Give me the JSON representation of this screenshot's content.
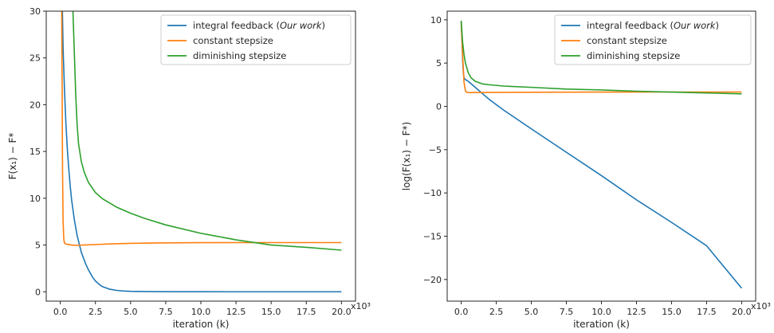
{
  "chart_data": [
    {
      "type": "line",
      "xlabel": "iteration (k)",
      "ylabel": "F(x₁) − F*",
      "x_multiplier": "x10³",
      "xlim": [
        -1.0,
        21.0
      ],
      "ylim": [
        -1.0,
        30.0
      ],
      "xticks": [
        0.0,
        2.5,
        5.0,
        7.5,
        10.0,
        12.5,
        15.0,
        17.5,
        20.0
      ],
      "xtick_labels": [
        "0.0",
        "2.5",
        "5.0",
        "7.5",
        "10.0",
        "12.5",
        "15.0",
        "17.5",
        "20.0"
      ],
      "yticks": [
        0,
        5,
        10,
        15,
        20,
        25,
        30
      ],
      "ytick_labels": [
        "0",
        "5",
        "10",
        "15",
        "20",
        "25",
        "30"
      ],
      "legend_position": "top-right",
      "grid": false,
      "series": [
        {
          "name": "integral feedback (Our work)",
          "legend_plain": "integral feedback (",
          "legend_italic": "Our work",
          "legend_close": ")",
          "color": "#1f77b4",
          "x": [
            0.15,
            0.2,
            0.3,
            0.4,
            0.5,
            0.6,
            0.7,
            0.8,
            1.0,
            1.2,
            1.5,
            1.8,
            2.0,
            2.3,
            2.5,
            2.8,
            3.0,
            3.5,
            4.0,
            4.5,
            5.0,
            6.0,
            7.0,
            8.0,
            10.0,
            12.0,
            15.0,
            17.5,
            20.0
          ],
          "y": [
            30.0,
            26.0,
            21.5,
            18.0,
            15.3,
            13.2,
            11.4,
            9.9,
            7.7,
            6.0,
            4.2,
            3.0,
            2.35,
            1.55,
            1.15,
            0.75,
            0.55,
            0.28,
            0.15,
            0.08,
            0.05,
            0.03,
            0.02,
            0.01,
            0.01,
            0.0,
            0.0,
            0.0,
            0.0
          ]
        },
        {
          "name": "constant stepsize",
          "color": "#ff7f0e",
          "x": [
            0.1,
            0.13,
            0.16,
            0.2,
            0.25,
            0.3,
            0.4,
            0.6,
            0.8,
            1.0,
            1.3,
            1.6,
            2.0,
            3.0,
            4.0,
            5.0,
            7.0,
            10.0,
            15.0,
            20.0
          ],
          "y": [
            30.0,
            22.0,
            13.0,
            7.5,
            5.6,
            5.2,
            5.1,
            5.05,
            5.0,
            4.98,
            4.97,
            5.0,
            5.02,
            5.08,
            5.14,
            5.18,
            5.22,
            5.25,
            5.26,
            5.26
          ]
        },
        {
          "name": "diminishing stepsize",
          "color": "#2ca02c",
          "x": [
            0.9,
            1.0,
            1.1,
            1.2,
            1.3,
            1.5,
            1.7,
            2.0,
            2.5,
            3.0,
            4.0,
            5.0,
            6.0,
            7.5,
            10.0,
            12.5,
            15.0,
            17.5,
            20.0
          ],
          "y": [
            30.0,
            25.5,
            21.0,
            17.8,
            15.8,
            13.9,
            12.8,
            11.7,
            10.6,
            9.95,
            9.05,
            8.4,
            7.85,
            7.15,
            6.25,
            5.55,
            5.0,
            4.75,
            4.45
          ]
        }
      ]
    },
    {
      "type": "line",
      "xlabel": "iteration (k)",
      "ylabel": "log(F(x₁) − F*)",
      "x_multiplier": "x10³",
      "xlim": [
        -1.0,
        21.0
      ],
      "ylim": [
        -22.5,
        11.0
      ],
      "xticks": [
        0.0,
        2.5,
        5.0,
        7.5,
        10.0,
        12.5,
        15.0,
        17.5,
        20.0
      ],
      "xtick_labels": [
        "0.0",
        "2.5",
        "5.0",
        "7.5",
        "10.0",
        "12.5",
        "15.0",
        "17.5",
        "20.0"
      ],
      "yticks": [
        -20,
        -15,
        -10,
        -5,
        0,
        5,
        10
      ],
      "ytick_labels": [
        "−20",
        "−15",
        "−10",
        "−5",
        "0",
        "5",
        "10"
      ],
      "legend_position": "top-right",
      "grid": false,
      "series": [
        {
          "name": "integral feedback (Our work)",
          "legend_plain": "integral feedback (",
          "legend_italic": "Our work",
          "legend_close": ")",
          "color": "#1f77b4",
          "x": [
            0.0,
            0.05,
            0.1,
            0.15,
            0.2,
            0.3,
            0.5,
            1.0,
            2.0,
            3.0,
            5.0,
            7.5,
            10.0,
            12.5,
            15.0,
            17.5,
            20.0
          ],
          "y": [
            9.8,
            8.0,
            5.5,
            4.0,
            3.3,
            3.1,
            2.9,
            2.2,
            0.8,
            -0.4,
            -2.6,
            -5.3,
            -8.0,
            -10.8,
            -13.4,
            -16.1,
            -21.0
          ]
        },
        {
          "name": "constant stepsize",
          "color": "#ff7f0e",
          "x": [
            0.0,
            0.1,
            0.2,
            0.3,
            0.4,
            0.5,
            1.0,
            2.0,
            5.0,
            10.0,
            15.0,
            20.0
          ],
          "y": [
            9.6,
            6.0,
            2.8,
            1.8,
            1.62,
            1.6,
            1.6,
            1.61,
            1.63,
            1.65,
            1.66,
            1.66
          ]
        },
        {
          "name": "diminishing stepsize",
          "color": "#2ca02c",
          "x": [
            0.0,
            0.1,
            0.2,
            0.3,
            0.5,
            0.7,
            1.0,
            1.5,
            2.0,
            3.0,
            5.0,
            7.5,
            10.0,
            12.5,
            15.0,
            17.5,
            20.0
          ],
          "y": [
            9.9,
            7.4,
            6.0,
            5.0,
            3.9,
            3.3,
            2.9,
            2.6,
            2.5,
            2.35,
            2.2,
            2.0,
            1.9,
            1.75,
            1.65,
            1.55,
            1.45
          ]
        }
      ]
    }
  ]
}
